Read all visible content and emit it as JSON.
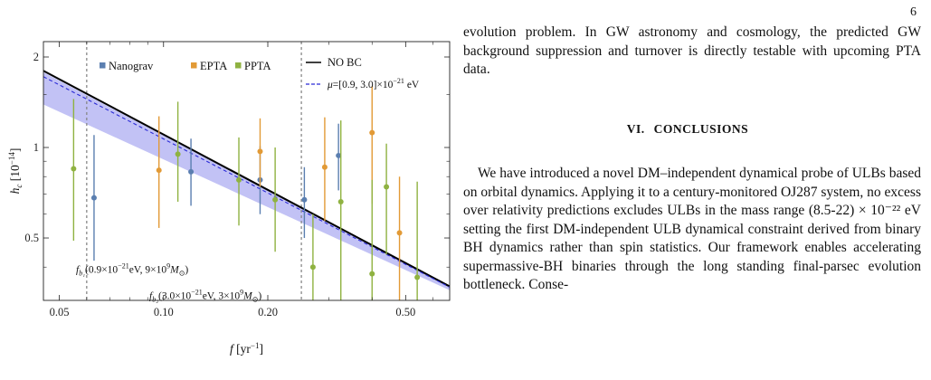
{
  "page": {
    "number": "6"
  },
  "chart_data": {
    "type": "line",
    "xlabel": "f [yr⁻¹]",
    "ylabel": "hc [10⁻¹⁴]",
    "xscale": "log",
    "yscale": "log",
    "xlim": [
      0.045,
      0.67
    ],
    "ylim": [
      0.31,
      2.25
    ],
    "x_ticks": [
      0.05,
      0.1,
      0.2,
      0.5
    ],
    "x_tick_labels": [
      "0.05",
      "0.10",
      "0.20",
      "0.50"
    ],
    "y_ticks": [
      0.5,
      1,
      2
    ],
    "y_tick_labels": [
      "0.5",
      "1",
      "2"
    ],
    "legend_placement": "top",
    "colors": {
      "Nanograv": "#5b7fb0",
      "EPTA": "#e29a36",
      "PPTA": "#8fb241",
      "nobc": "#000000",
      "mu": "#2a2ad6",
      "band": "#b7b7f3"
    },
    "lines": [
      {
        "name": "NO BC",
        "style": "solid",
        "x": [
          0.045,
          0.67
        ],
        "y": [
          1.8,
          0.345
        ]
      },
      {
        "name": "μ=[0.9, 3.0]×10⁻²¹ eV",
        "style": "dashed",
        "x": [
          0.045,
          0.67
        ],
        "y": [
          1.72,
          0.343
        ]
      }
    ],
    "band": {
      "x": [
        0.045,
        0.67
      ],
      "upper": [
        1.78,
        0.345
      ],
      "lower": [
        1.39,
        0.335
      ]
    },
    "vlines": [
      {
        "x": 0.06,
        "label_main": "f",
        "label_sub": "b₁",
        "label_rest": "(0.9×10⁻²¹eV, 9×10⁹M",
        "label_sun": "⊙",
        "label_close": ")",
        "label_y": 0.383
      },
      {
        "x": 0.25,
        "label_main": "f",
        "label_sub": "b₂",
        "label_rest": "(3.0×10⁻²¹eV, 3×10⁹M",
        "label_sun": "⊙",
        "label_close": ")",
        "label_y": 0.313
      }
    ],
    "series": [
      {
        "name": "Nanograv",
        "points": [
          {
            "x": 0.063,
            "y": 0.68,
            "lo": 0.42,
            "hi": 1.1
          },
          {
            "x": 0.12,
            "y": 0.83,
            "lo": 0.64,
            "hi": 1.07
          },
          {
            "x": 0.19,
            "y": 0.78,
            "lo": 0.6,
            "hi": 1.01
          },
          {
            "x": 0.255,
            "y": 0.67,
            "lo": 0.5,
            "hi": 0.86
          },
          {
            "x": 0.32,
            "y": 0.94,
            "lo": 0.72,
            "hi": 1.2
          }
        ]
      },
      {
        "name": "EPTA",
        "points": [
          {
            "x": 0.097,
            "y": 0.84,
            "lo": 0.54,
            "hi": 1.27
          },
          {
            "x": 0.19,
            "y": 0.97,
            "lo": 0.74,
            "hi": 1.25
          },
          {
            "x": 0.292,
            "y": 0.86,
            "lo": 0.57,
            "hi": 1.26
          },
          {
            "x": 0.4,
            "y": 1.12,
            "lo": 0.65,
            "hi": 1.6
          },
          {
            "x": 0.48,
            "y": 0.52,
            "lo": 0.31,
            "hi": 0.8
          }
        ]
      },
      {
        "name": "PPTA",
        "points": [
          {
            "x": 0.055,
            "y": 0.85,
            "lo": 0.49,
            "hi": 1.45
          },
          {
            "x": 0.11,
            "y": 0.95,
            "lo": 0.66,
            "hi": 1.42
          },
          {
            "x": 0.165,
            "y": 0.78,
            "lo": 0.55,
            "hi": 1.08
          },
          {
            "x": 0.21,
            "y": 0.67,
            "lo": 0.45,
            "hi": 1.0
          },
          {
            "x": 0.27,
            "y": 0.4,
            "lo": 0.31,
            "hi": 0.6
          },
          {
            "x": 0.325,
            "y": 0.66,
            "lo": 0.31,
            "hi": 1.23
          },
          {
            "x": 0.4,
            "y": 0.38,
            "lo": 0.31,
            "hi": 0.78
          },
          {
            "x": 0.44,
            "y": 0.74,
            "lo": 0.44,
            "hi": 1.03
          },
          {
            "x": 0.54,
            "y": 0.37,
            "lo": 0.31,
            "hi": 0.77
          }
        ]
      }
    ]
  },
  "text": {
    "para_top": "evolution problem. In GW astronomy and cosmology, the predicted GW background suppression and turnover is directly testable with upcoming PTA data.",
    "section_number": "VI.",
    "section_title": "CONCLUSIONS",
    "para_body": "We have introduced a novel DM–independent dynamical probe of ULBs based on orbital dynamics. Applying it to a century-monitored OJ287 system, no excess over relativity predictions excludes ULBs in the mass range (8.5-22) × 10⁻²² eV setting the first DM-independent ULB dynamical constraint derived from binary BH dynamics rather than spin statistics. Our framework enables accelerating supermassive-BH binaries through the long standing final-parsec evolution bottleneck. Conse-"
  }
}
